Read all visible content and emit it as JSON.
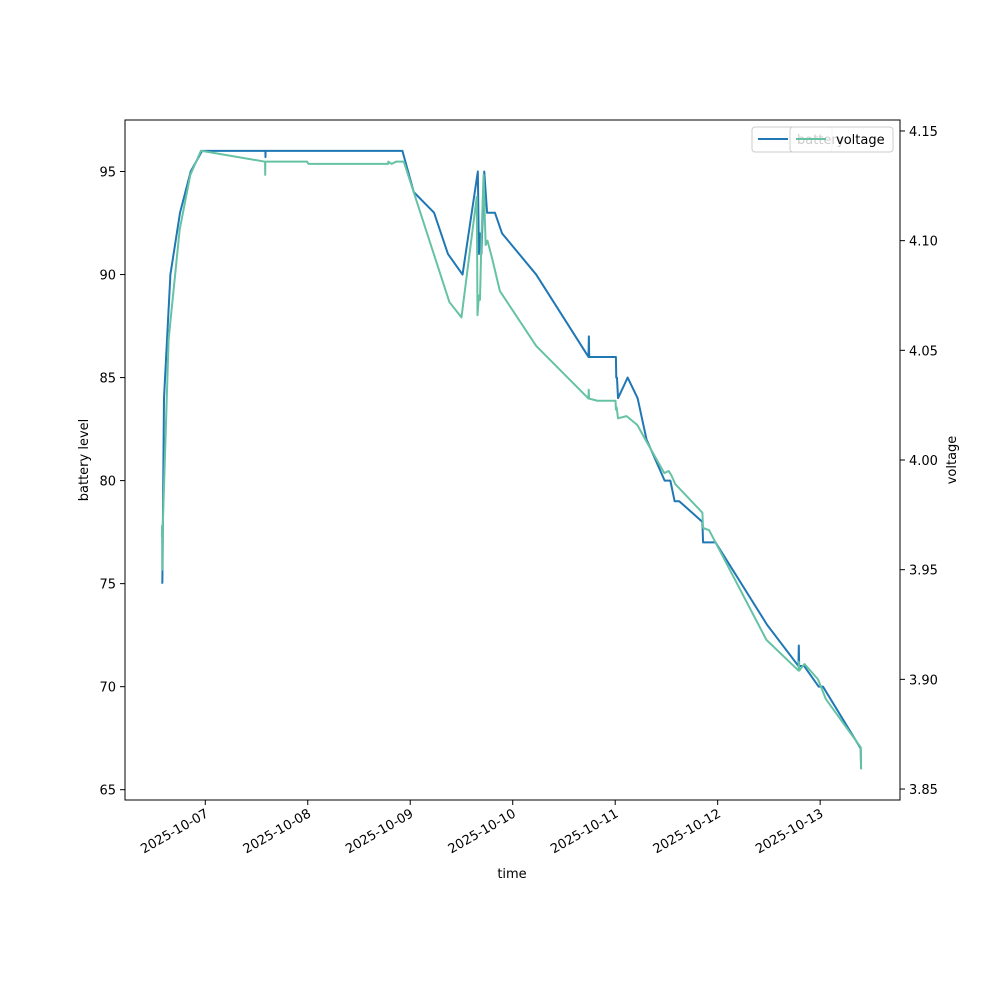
{
  "chart_data": {
    "type": "line",
    "xlabel": "time",
    "ylabel_left": "battery level",
    "ylabel_right": "voltage",
    "x_ticks": [
      "2025-10-07",
      "2025-10-08",
      "2025-10-09",
      "2025-10-10",
      "2025-10-11",
      "2025-10-12",
      "2025-10-13"
    ],
    "x_range": [
      "2025-10-06T05:12",
      "2025-10-13T18:42"
    ],
    "left_axis": {
      "ylim": [
        64.5,
        97.5
      ],
      "ticks": [
        65,
        70,
        75,
        80,
        85,
        90,
        95
      ]
    },
    "right_axis": {
      "ylim": [
        3.845,
        4.155
      ],
      "ticks": [
        "3.85",
        "3.90",
        "3.95",
        "4.00",
        "4.05",
        "4.10",
        "4.15"
      ]
    },
    "grid": false,
    "legend": {
      "placement": "top-right",
      "entries": [
        "battery",
        "voltage"
      ]
    },
    "colors": {
      "battery": "#1f77b4",
      "voltage": "#66c2a5"
    },
    "series": [
      {
        "name": "battery",
        "axis": "left",
        "points": [
          [
            "2025-10-06T13:55",
            75
          ],
          [
            "2025-10-06T13:57",
            75.1
          ],
          [
            "2025-10-06T14:20",
            84
          ],
          [
            "2025-10-06T15:50",
            90
          ],
          [
            "2025-10-06T18:05",
            93
          ],
          [
            "2025-10-06T20:35",
            95
          ],
          [
            "2025-10-06T23:15",
            96
          ],
          [
            "2025-10-07T14:05",
            96
          ],
          [
            "2025-10-07T14:06",
            95.7
          ],
          [
            "2025-10-07T14:07",
            96
          ],
          [
            "2025-10-08T22:10",
            96
          ],
          [
            "2025-10-09T00:50",
            94
          ],
          [
            "2025-10-09T05:35",
            93
          ],
          [
            "2025-10-09T08:50",
            91
          ],
          [
            "2025-10-09T12:15",
            90
          ],
          [
            "2025-10-09T15:50",
            95
          ],
          [
            "2025-10-09T16:05",
            91
          ],
          [
            "2025-10-09T16:20",
            92
          ],
          [
            "2025-10-09T16:40",
            91
          ],
          [
            "2025-10-09T17:20",
            95
          ],
          [
            "2025-10-09T18:00",
            93
          ],
          [
            "2025-10-09T19:50",
            93
          ],
          [
            "2025-10-09T21:30",
            92
          ],
          [
            "2025-10-10T05:30",
            90
          ],
          [
            "2025-10-10T17:45",
            86
          ],
          [
            "2025-10-10T17:50",
            87
          ],
          [
            "2025-10-10T17:55",
            86
          ],
          [
            "2025-10-11T00:10",
            86
          ],
          [
            "2025-10-11T00:15",
            85
          ],
          [
            "2025-10-11T00:25",
            85
          ],
          [
            "2025-10-11T00:40",
            84
          ],
          [
            "2025-10-11T02:55",
            85
          ],
          [
            "2025-10-11T05:15",
            84
          ],
          [
            "2025-10-11T07:20",
            82
          ],
          [
            "2025-10-11T11:35",
            80
          ],
          [
            "2025-10-11T12:55",
            80
          ],
          [
            "2025-10-11T13:55",
            79
          ],
          [
            "2025-10-11T15:00",
            79
          ],
          [
            "2025-10-11T20:25",
            78
          ],
          [
            "2025-10-11T20:35",
            77
          ],
          [
            "2025-10-11T23:30",
            77
          ],
          [
            "2025-10-12T11:35",
            73
          ],
          [
            "2025-10-12T18:55",
            71
          ],
          [
            "2025-10-12T19:00",
            72
          ],
          [
            "2025-10-12T19:05",
            71
          ],
          [
            "2025-10-12T20:15",
            71
          ],
          [
            "2025-10-12T23:40",
            70
          ],
          [
            "2025-10-13T00:40",
            70
          ],
          [
            "2025-10-13T09:30",
            67
          ],
          [
            "2025-10-13T09:35",
            66
          ]
        ]
      },
      {
        "name": "voltage",
        "axis": "right",
        "points": [
          [
            "2025-10-06T13:50",
            3.965
          ],
          [
            "2025-10-06T13:53",
            3.97
          ],
          [
            "2025-10-06T13:55",
            3.95
          ],
          [
            "2025-10-06T13:58",
            3.965
          ],
          [
            "2025-10-06T15:25",
            4.055
          ],
          [
            "2025-10-06T18:00",
            4.105
          ],
          [
            "2025-10-06T20:30",
            4.13
          ],
          [
            "2025-10-06T23:00",
            4.141
          ],
          [
            "2025-10-07T14:00",
            4.136
          ],
          [
            "2025-10-07T14:02",
            4.13
          ],
          [
            "2025-10-07T14:04",
            4.136
          ],
          [
            "2025-10-07T23:50",
            4.136
          ],
          [
            "2025-10-08T00:10",
            4.135
          ],
          [
            "2025-10-08T18:50",
            4.135
          ],
          [
            "2025-10-08T18:52",
            4.136
          ],
          [
            "2025-10-08T19:40",
            4.135
          ],
          [
            "2025-10-08T20:40",
            4.136
          ],
          [
            "2025-10-08T22:30",
            4.136
          ],
          [
            "2025-10-09T09:10",
            4.072
          ],
          [
            "2025-10-09T12:00",
            4.065
          ],
          [
            "2025-10-09T15:35",
            4.12
          ],
          [
            "2025-10-09T15:45",
            4.066
          ],
          [
            "2025-10-09T16:05",
            4.075
          ],
          [
            "2025-10-09T16:20",
            4.073
          ],
          [
            "2025-10-09T16:40",
            4.1
          ],
          [
            "2025-10-09T17:10",
            4.13
          ],
          [
            "2025-10-09T17:40",
            4.098
          ],
          [
            "2025-10-09T18:05",
            4.1
          ],
          [
            "2025-10-09T19:10",
            4.092
          ],
          [
            "2025-10-09T21:00",
            4.077
          ],
          [
            "2025-10-10T05:30",
            4.052
          ],
          [
            "2025-10-10T17:45",
            4.028
          ],
          [
            "2025-10-10T17:48",
            4.032
          ],
          [
            "2025-10-10T17:52",
            4.028
          ],
          [
            "2025-10-10T19:50",
            4.027
          ],
          [
            "2025-10-11T00:05",
            4.027
          ],
          [
            "2025-10-11T00:10",
            4.023
          ],
          [
            "2025-10-11T00:20",
            4.024
          ],
          [
            "2025-10-11T00:40",
            4.019
          ],
          [
            "2025-10-11T02:40",
            4.02
          ],
          [
            "2025-10-11T05:10",
            4.016
          ],
          [
            "2025-10-11T07:10",
            4.009
          ],
          [
            "2025-10-11T11:30",
            3.994
          ],
          [
            "2025-10-11T12:30",
            3.995
          ],
          [
            "2025-10-11T13:10",
            3.993
          ],
          [
            "2025-10-11T14:05",
            3.989
          ],
          [
            "2025-10-11T20:25",
            3.976
          ],
          [
            "2025-10-11T20:35",
            3.969
          ],
          [
            "2025-10-11T22:00",
            3.968
          ],
          [
            "2025-10-12T11:25",
            3.918
          ],
          [
            "2025-10-12T18:55",
            3.904
          ],
          [
            "2025-10-12T19:00",
            3.908
          ],
          [
            "2025-10-12T19:05",
            3.904
          ],
          [
            "2025-10-12T20:20",
            3.907
          ],
          [
            "2025-10-12T23:30",
            3.9
          ],
          [
            "2025-10-13T01:20",
            3.891
          ],
          [
            "2025-10-13T09:30",
            3.869
          ],
          [
            "2025-10-13T09:35",
            3.859
          ]
        ]
      }
    ]
  }
}
